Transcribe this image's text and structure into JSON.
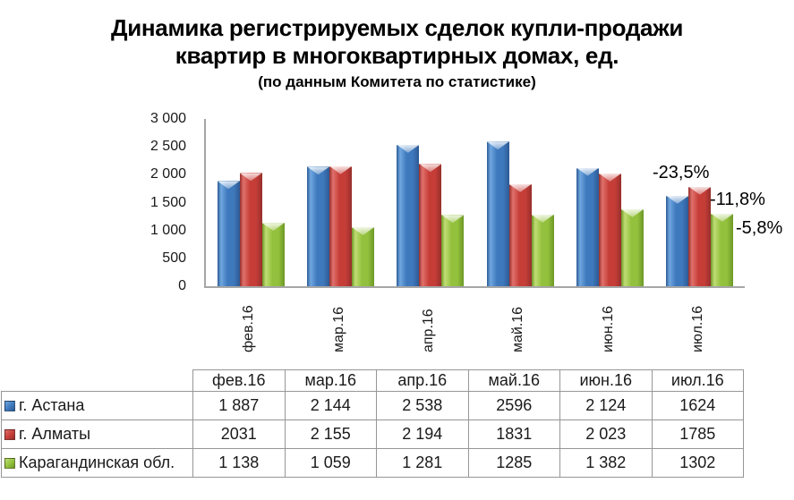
{
  "title_lines": [
    "Динамика регистрируемых сделок купли-продажи",
    "квартир в многоквартирных домах, ед."
  ],
  "subtitle": "(по данным Комитета по статистике)",
  "chart_data": {
    "type": "bar",
    "title": "Динамика регистрируемых сделок купли-продажи квартир в многоквартирных домах, ед.",
    "subtitle": "(по данным Комитета по статистике)",
    "categories": [
      "фев.16",
      "мар.16",
      "апр.16",
      "май.16",
      "июн.16",
      "июл.16"
    ],
    "series": [
      {
        "name": "г. Астана",
        "color": "#3f79bd",
        "color_light": "#6fa7e0",
        "color_dark": "#2d5a94",
        "values": [
          1887,
          2144,
          2538,
          2596,
          2124,
          1624
        ]
      },
      {
        "name": "г. Алматы",
        "color": "#c63d38",
        "color_light": "#e0716c",
        "color_dark": "#962f2b",
        "values": [
          2031,
          2155,
          2194,
          1831,
          2023,
          1785
        ]
      },
      {
        "name": "Карагандинская обл.",
        "color": "#93c13d",
        "color_light": "#c0dd75",
        "color_dark": "#6d9827",
        "values": [
          1138,
          1059,
          1281,
          1285,
          1382,
          1302
        ]
      }
    ],
    "ylabel": "",
    "xlabel": "",
    "ylim": [
      0,
      3000
    ],
    "yticks": [
      0,
      500,
      1000,
      1500,
      2000,
      2500,
      3000
    ],
    "ytick_labels": [
      "0",
      "500",
      "1 000",
      "1 500",
      "2 000",
      "2 500",
      "3 000"
    ],
    "grid": false,
    "legend_position": "data-table-left-column",
    "annotations": [
      {
        "text": "-23,5%",
        "series": "г. Астана"
      },
      {
        "text": "-11,8%",
        "series": "г. Алматы"
      },
      {
        "text": "-5,8%",
        "series": "Карагандинская обл."
      }
    ]
  },
  "table": {
    "headers": [
      "фев.16",
      "мар.16",
      "апр.16",
      "май.16",
      "июн.16",
      "июл.16"
    ],
    "rows": [
      {
        "label": "г. Астана",
        "cells": [
          "1 887",
          "2 144",
          "2 538",
          "2596",
          "2 124",
          "1624"
        ]
      },
      {
        "label": "г. Алматы",
        "cells": [
          "2031",
          "2 155",
          "2 194",
          "1831",
          "2 023",
          "1785"
        ]
      },
      {
        "label": "Карагандинская обл.",
        "cells": [
          "1 138",
          "1 059",
          "1 281",
          "1285",
          "1 382",
          "1302"
        ]
      }
    ]
  }
}
